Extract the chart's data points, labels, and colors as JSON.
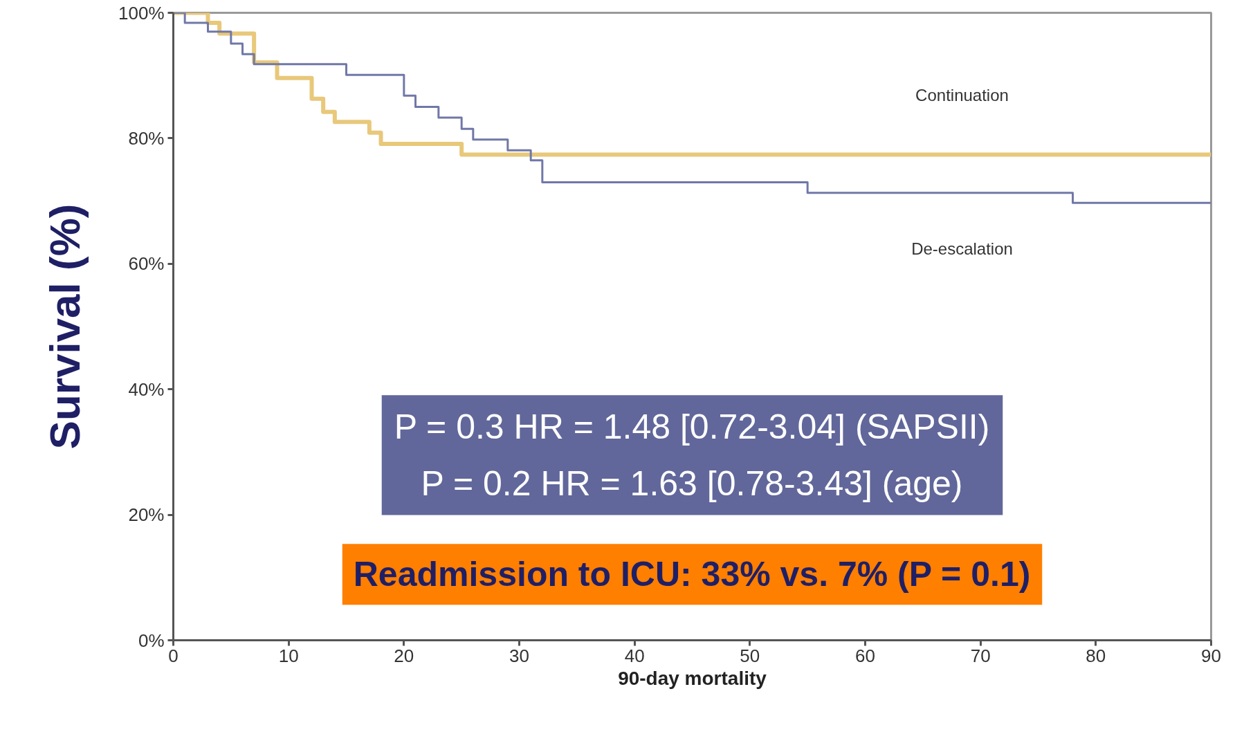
{
  "chart_data": {
    "type": "step",
    "xlabel": "90-day mortality",
    "ylabel": "Survival (%)",
    "xlim": [
      0,
      90
    ],
    "xticks": [
      0,
      10,
      20,
      30,
      40,
      50,
      60,
      70,
      80,
      90
    ],
    "ylim": [
      0,
      100
    ],
    "yticks": [
      {
        "value": 0,
        "label": "0%"
      },
      {
        "value": 20,
        "label": "20%"
      },
      {
        "value": 40,
        "label": "40%"
      },
      {
        "value": 60,
        "label": "60%"
      },
      {
        "value": 80,
        "label": "80%"
      },
      {
        "value": 100,
        "label": "100%"
      }
    ],
    "grid": false,
    "line_style": "solid",
    "marker": "none",
    "series": [
      {
        "name": "Continuation",
        "color": "#e8c87a",
        "x": [
          0,
          3,
          4,
          7,
          9,
          12,
          13,
          14,
          17,
          18,
          25,
          90
        ],
        "values": [
          100,
          98.4,
          96.7,
          92.1,
          89.6,
          86.3,
          84.2,
          82.6,
          80.9,
          79.1,
          77.4,
          77.4
        ]
      },
      {
        "name": "De-escalation",
        "color": "#7078a8",
        "x": [
          0,
          1,
          3,
          5,
          6,
          7,
          15,
          20,
          21,
          23,
          25,
          26,
          29,
          31,
          32,
          55,
          78,
          90
        ],
        "values": [
          100,
          98.4,
          97,
          95.1,
          93.4,
          91.8,
          90.1,
          86.8,
          85,
          83.3,
          81.5,
          79.8,
          78.1,
          76.5,
          73,
          71.3,
          69.7,
          69.7
        ]
      }
    ],
    "annotations": [
      "P = 0.3 HR = 1.48 [0.72-3.04] (SAPSII)",
      "P = 0.2 HR = 1.63 [0.78-3.43] (age)",
      "Readmission to ICU: 33% vs. 7% (P = 0.1)"
    ]
  }
}
